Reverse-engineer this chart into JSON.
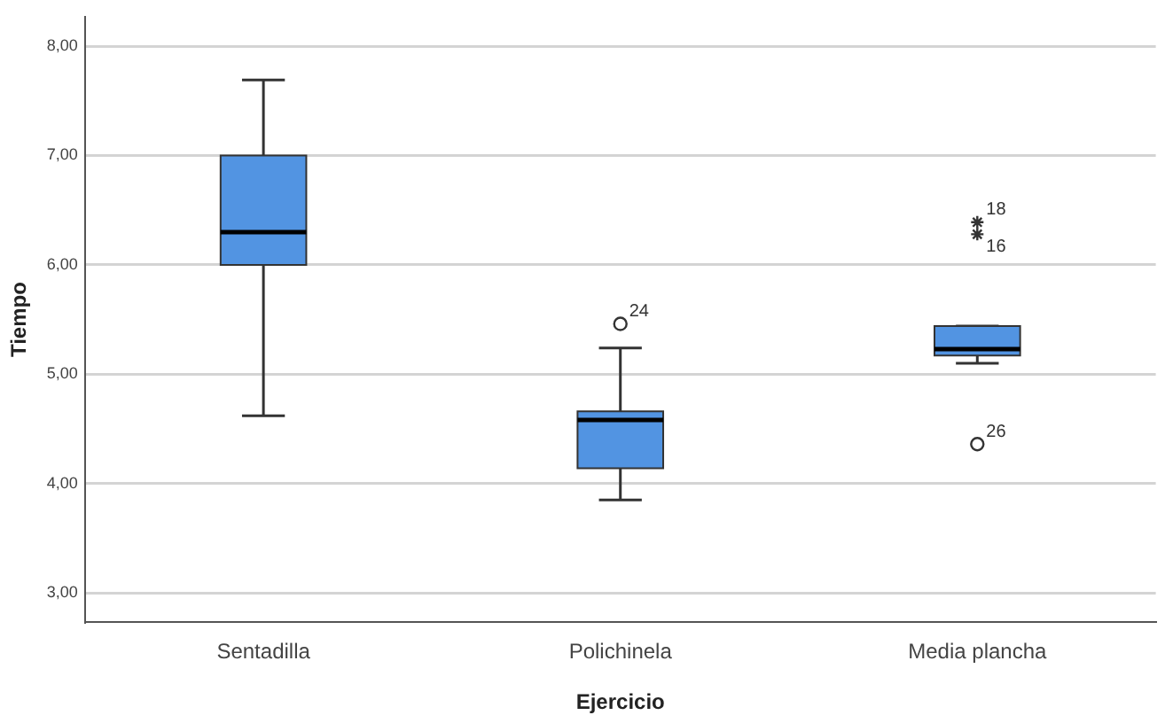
{
  "chart_data": {
    "type": "box",
    "xlabel": "Ejercicio",
    "ylabel": "Tiempo",
    "categories": [
      "Sentadilla",
      "Polichinela",
      "Media plancha"
    ],
    "color": "#5294e2",
    "boxes": [
      {
        "low": 4.62,
        "q1": 6.0,
        "median": 6.3,
        "q3": 7.0,
        "high": 7.69
      },
      {
        "low": 3.85,
        "q1": 4.14,
        "median": 4.58,
        "q3": 4.66,
        "high": 5.24
      },
      {
        "low": 5.1,
        "q1": 5.17,
        "median": 5.23,
        "q3": 5.44,
        "high": 5.44
      }
    ],
    "series": [
      {
        "type": "scatter",
        "marker": "cross",
        "color": "#333333",
        "x": [
          "Media plancha",
          "Media plancha"
        ],
        "values": [
          6.39,
          6.28
        ]
      },
      {
        "type": "scatter",
        "marker": "circle",
        "color": "#333333",
        "x": [
          "Polichinela",
          "Media plancha"
        ],
        "values": [
          5.46,
          4.36
        ]
      }
    ],
    "ylim": [
      2.73,
      8.27
    ],
    "yticks": [
      {
        "value": 3,
        "label": "3,00"
      },
      {
        "value": 4,
        "label": "4,00"
      },
      {
        "value": 5,
        "label": "5,00"
      },
      {
        "value": 6,
        "label": "6,00"
      },
      {
        "value": 7,
        "label": "7,00"
      },
      {
        "value": 8,
        "label": "8,00"
      }
    ],
    "grid": "y",
    "legend": false,
    "annotations": [
      {
        "text": "24",
        "x": "Polichinela",
        "y": 5.46
      },
      {
        "text": "18",
        "x": "Media plancha",
        "y": 6.39
      },
      {
        "text": "16",
        "x": "Media plancha",
        "y": 6.28
      },
      {
        "text": "26",
        "x": "Media plancha",
        "y": 4.36
      }
    ]
  }
}
